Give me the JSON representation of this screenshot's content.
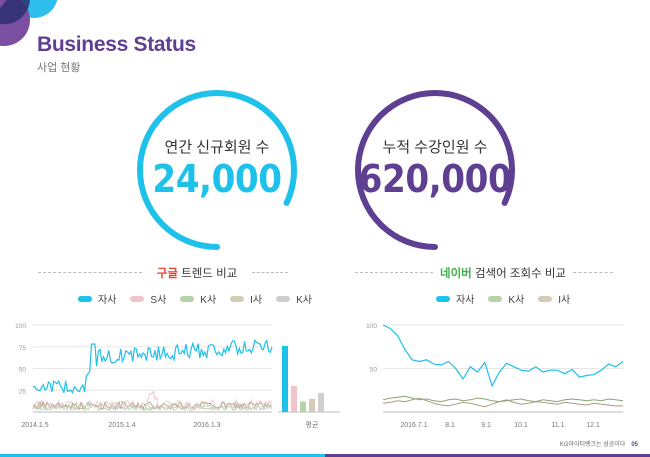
{
  "header": {
    "title": "Business Status",
    "subtitle": "사업 현황"
  },
  "stats": [
    {
      "label": "연간 신규회원 수",
      "value": "24,000",
      "color": "#1ec1ea",
      "fill": 0.82
    },
    {
      "label": "누적 수강인원 수",
      "value": "620,000",
      "color": "#5f3f92",
      "fill": 0.82
    }
  ],
  "google_section": {
    "title_highlight": "구글",
    "title_rest": " 트렌드 비교",
    "highlight_color": "#e8452c",
    "legend": [
      {
        "label": "자사",
        "color": "#1ec1ea"
      },
      {
        "label": "S사",
        "color": "#f0c4c8"
      },
      {
        "label": "K사",
        "color": "#b5d3a8"
      },
      {
        "label": "I사",
        "color": "#d6cbb6"
      },
      {
        "label": "K사",
        "color": "#cfcfcf"
      }
    ],
    "y_ticks": [
      "100",
      "75",
      "50",
      "25"
    ],
    "x_ticks": [
      "2014.1.5",
      "2015.1.4",
      "2016.1.3"
    ],
    "avg_label": "평균",
    "avg_values": [
      76,
      30,
      12,
      15,
      22
    ]
  },
  "naver_section": {
    "title_highlight": "네이버",
    "title_rest": " 검색어 조회수 비교",
    "highlight_color": "#3db04b",
    "legend": [
      {
        "label": "자사",
        "color": "#1ec1ea"
      },
      {
        "label": "K사",
        "color": "#b5d3a8"
      },
      {
        "label": "I사",
        "color": "#d6cbb6"
      }
    ],
    "y_ticks": [
      "100",
      "50"
    ],
    "x_ticks": [
      "2016.7.1",
      "8.1",
      "9.1",
      "10.1",
      "11.1",
      "12.1"
    ],
    "series_self": [
      100,
      96,
      88,
      72,
      60,
      58,
      60,
      55,
      54,
      58,
      50,
      38,
      52,
      46,
      57,
      30,
      46,
      56,
      52,
      48,
      47,
      52,
      46,
      48,
      48,
      44,
      49,
      40,
      42,
      43,
      48,
      55,
      52,
      58
    ],
    "series_k": [
      14,
      16,
      17,
      18,
      16,
      14,
      15,
      13,
      12,
      14,
      15,
      13,
      14,
      16,
      15,
      13,
      12,
      13,
      14,
      15,
      13,
      12,
      14,
      13,
      12,
      14,
      15,
      14,
      13,
      14,
      13,
      15,
      14,
      13
    ],
    "series_i": [
      10,
      11,
      13,
      12,
      14,
      16,
      13,
      10,
      8,
      7,
      9,
      11,
      10,
      8,
      6,
      9,
      12,
      14,
      11,
      9,
      10,
      12,
      11,
      10,
      9,
      11,
      10,
      9,
      8,
      10,
      9,
      8,
      7,
      7
    ]
  },
  "footer": {
    "text": "KG아이티뱅크는 성공이다",
    "page": "05"
  }
}
